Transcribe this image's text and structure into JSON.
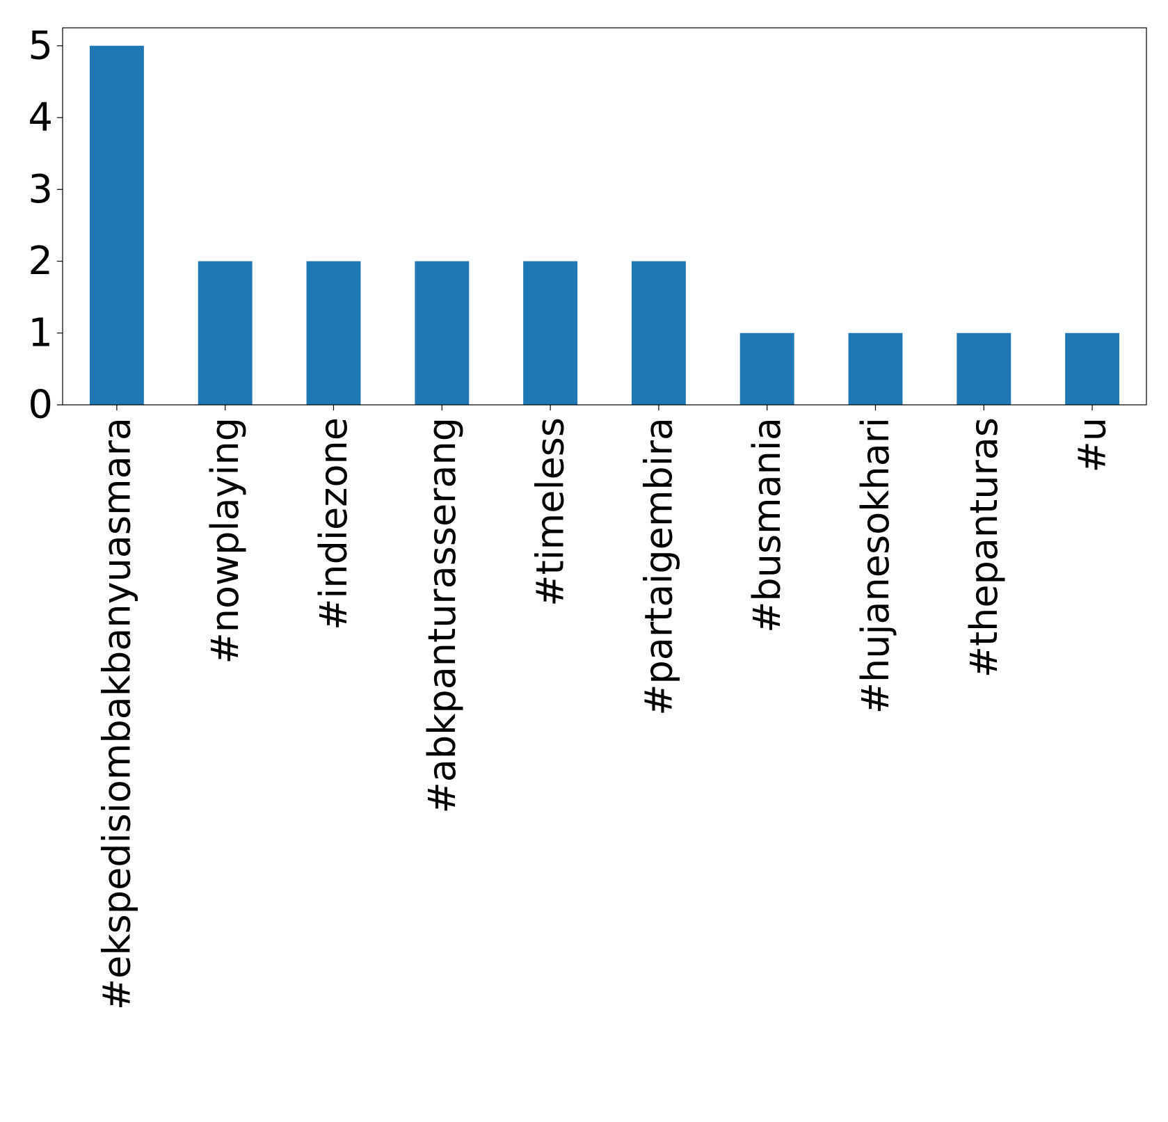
{
  "chart_data": {
    "type": "bar",
    "title": "",
    "xlabel": "",
    "ylabel": "",
    "categories": [
      "#ekspedisiombakbanyuasmara",
      "#nowplaying",
      "#indiezone",
      "#abkpanturasserang",
      "#timeless",
      "#partaigembira",
      "#busmania",
      "#hujanesokhari",
      "#thepanturas",
      "#u"
    ],
    "values": [
      5,
      2,
      2,
      2,
      2,
      2,
      1,
      1,
      1,
      1
    ],
    "ylim": [
      0,
      5.25
    ],
    "yticks": [
      "0",
      "1",
      "2",
      "3",
      "4",
      "5"
    ],
    "grid": false,
    "legend": "none",
    "colors": {
      "bar": "#1f77b4",
      "axis": "#000000"
    }
  }
}
